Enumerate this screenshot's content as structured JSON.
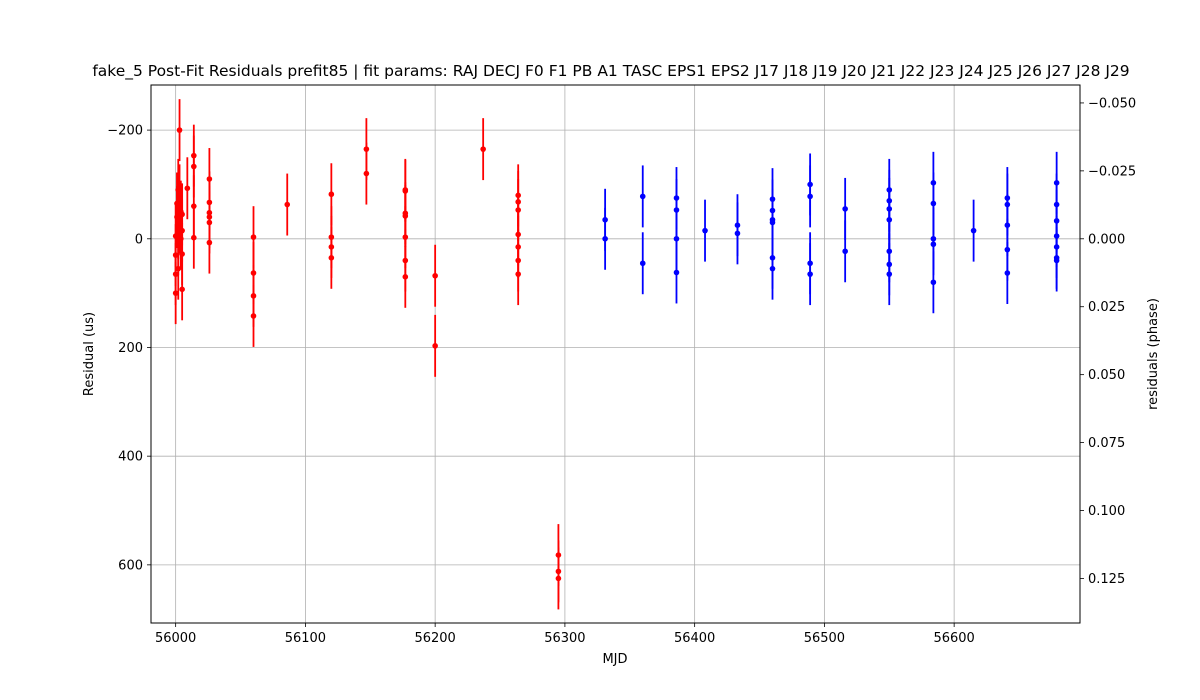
{
  "chart_data": {
    "type": "scatter",
    "title": "fake_5 Post-Fit Residuals prefit85 | fit params: RAJ DECJ F0 F1 PB A1 TASC EPS1 EPS2 J17 J18 J19 J20 J21 J22 J23 J24 J25 J26 J27 J28 J29",
    "xlabel": "MJD",
    "ylabel": "Residual (us)",
    "ylabel_right": "residuals (phase)",
    "xlim": [
      55981,
      56697
    ],
    "ylim": [
      707,
      -283
    ],
    "ylim_right": [
      0.1414,
      -0.0566
    ],
    "x_ticks": [
      56000,
      56100,
      56200,
      56300,
      56400,
      56500,
      56600
    ],
    "x_tick_labels": [
      "56000",
      "56100",
      "56200",
      "56300",
      "56400",
      "56500",
      "56600"
    ],
    "y_ticks": [
      -200,
      0,
      200,
      400,
      600
    ],
    "y_tick_labels": [
      "−200",
      "0",
      "200",
      "400",
      "600"
    ],
    "y2_ticks": [
      -0.05,
      -0.025,
      0.0,
      0.025,
      0.05,
      0.075,
      0.1,
      0.125
    ],
    "y2_tick_labels": [
      "−0.050",
      "−0.025",
      "0.000",
      "0.025",
      "0.050",
      "0.075",
      "0.100",
      "0.125"
    ],
    "grid": true,
    "series": [
      {
        "color": "#ff0000",
        "points": [
          {
            "x": 56000,
            "y": 100,
            "err": 57
          },
          {
            "x": 56000,
            "y": 65,
            "err": 57
          },
          {
            "x": 56000,
            "y": 30,
            "err": 57
          },
          {
            "x": 56000,
            "y": -5,
            "err": 57
          },
          {
            "x": 56001,
            "y": -40,
            "err": 57
          },
          {
            "x": 56001,
            "y": -65,
            "err": 57
          },
          {
            "x": 56002,
            "y": 55,
            "err": 57
          },
          {
            "x": 56002,
            "y": 10,
            "err": 57
          },
          {
            "x": 56002,
            "y": -20,
            "err": 57
          },
          {
            "x": 56002,
            "y": -50,
            "err": 57
          },
          {
            "x": 56002,
            "y": -90,
            "err": 57
          },
          {
            "x": 56003,
            "y": -200,
            "err": 57
          },
          {
            "x": 56003,
            "y": -80,
            "err": 57
          },
          {
            "x": 56003,
            "y": -30,
            "err": 57
          },
          {
            "x": 56004,
            "y": 0,
            "err": 57
          },
          {
            "x": 56004,
            "y": -50,
            "err": 57
          },
          {
            "x": 56005,
            "y": -15,
            "err": 57
          },
          {
            "x": 56005,
            "y": 28,
            "err": 57
          },
          {
            "x": 56005,
            "y": -45,
            "err": 57
          },
          {
            "x": 56005,
            "y": 93,
            "err": 57
          },
          {
            "x": 56009,
            "y": -93,
            "err": 57
          },
          {
            "x": 56014,
            "y": -153,
            "err": 57
          },
          {
            "x": 56014,
            "y": -133,
            "err": 57
          },
          {
            "x": 56014,
            "y": -60,
            "err": 57
          },
          {
            "x": 56014,
            "y": -2,
            "err": 57
          },
          {
            "x": 56026,
            "y": -110,
            "err": 57
          },
          {
            "x": 56026,
            "y": -67,
            "err": 57
          },
          {
            "x": 56026,
            "y": -48,
            "err": 57
          },
          {
            "x": 56026,
            "y": -40,
            "err": 57
          },
          {
            "x": 56026,
            "y": -30,
            "err": 57
          },
          {
            "x": 56026,
            "y": 7,
            "err": 57
          },
          {
            "x": 56060,
            "y": -3,
            "err": 57
          },
          {
            "x": 56060,
            "y": 63,
            "err": 57
          },
          {
            "x": 56060,
            "y": 105,
            "err": 57
          },
          {
            "x": 56060,
            "y": 142,
            "err": 57
          },
          {
            "x": 56086,
            "y": -63,
            "err": 57
          },
          {
            "x": 56120,
            "y": -82,
            "err": 57
          },
          {
            "x": 56120,
            "y": -3,
            "err": 57
          },
          {
            "x": 56120,
            "y": 15,
            "err": 57
          },
          {
            "x": 56120,
            "y": 35,
            "err": 57
          },
          {
            "x": 56147,
            "y": -165,
            "err": 57
          },
          {
            "x": 56147,
            "y": -120,
            "err": 57
          },
          {
            "x": 56177,
            "y": -90,
            "err": 57
          },
          {
            "x": 56177,
            "y": -88,
            "err": 57
          },
          {
            "x": 56177,
            "y": -47,
            "err": 57
          },
          {
            "x": 56177,
            "y": -42,
            "err": 57
          },
          {
            "x": 56177,
            "y": -3,
            "err": 57
          },
          {
            "x": 56177,
            "y": 40,
            "err": 57
          },
          {
            "x": 56177,
            "y": 70,
            "err": 57
          },
          {
            "x": 56200,
            "y": 68,
            "err": 57
          },
          {
            "x": 56200,
            "y": 197,
            "err": 57
          },
          {
            "x": 56237,
            "y": -165,
            "err": 57
          },
          {
            "x": 56264,
            "y": -80,
            "err": 57
          },
          {
            "x": 56264,
            "y": -68,
            "err": 57
          },
          {
            "x": 56264,
            "y": -53,
            "err": 57
          },
          {
            "x": 56264,
            "y": -8,
            "err": 57
          },
          {
            "x": 56264,
            "y": 15,
            "err": 57
          },
          {
            "x": 56264,
            "y": 40,
            "err": 57
          },
          {
            "x": 56264,
            "y": 65,
            "err": 57
          },
          {
            "x": 56295,
            "y": 582,
            "err": 57
          },
          {
            "x": 56295,
            "y": 612,
            "err": 57
          },
          {
            "x": 56295,
            "y": 625,
            "err": 57
          }
        ]
      },
      {
        "color": "#0000ff",
        "points": [
          {
            "x": 56331,
            "y": -35,
            "err": 57
          },
          {
            "x": 56331,
            "y": 0,
            "err": 57
          },
          {
            "x": 56360,
            "y": -78,
            "err": 57
          },
          {
            "x": 56360,
            "y": 45,
            "err": 57
          },
          {
            "x": 56386,
            "y": -75,
            "err": 57
          },
          {
            "x": 56386,
            "y": -53,
            "err": 57
          },
          {
            "x": 56386,
            "y": 0,
            "err": 57
          },
          {
            "x": 56386,
            "y": 62,
            "err": 57
          },
          {
            "x": 56408,
            "y": -15,
            "err": 57
          },
          {
            "x": 56433,
            "y": -25,
            "err": 57
          },
          {
            "x": 56433,
            "y": -10,
            "err": 57
          },
          {
            "x": 56460,
            "y": -73,
            "err": 57
          },
          {
            "x": 56460,
            "y": -52,
            "err": 57
          },
          {
            "x": 56460,
            "y": -35,
            "err": 57
          },
          {
            "x": 56460,
            "y": -30,
            "err": 57
          },
          {
            "x": 56460,
            "y": 35,
            "err": 57
          },
          {
            "x": 56460,
            "y": 55,
            "err": 57
          },
          {
            "x": 56489,
            "y": -100,
            "err": 57
          },
          {
            "x": 56489,
            "y": -78,
            "err": 57
          },
          {
            "x": 56489,
            "y": 45,
            "err": 57
          },
          {
            "x": 56489,
            "y": 65,
            "err": 57
          },
          {
            "x": 56516,
            "y": -55,
            "err": 57
          },
          {
            "x": 56516,
            "y": 23,
            "err": 57
          },
          {
            "x": 56550,
            "y": -90,
            "err": 57
          },
          {
            "x": 56550,
            "y": -70,
            "err": 57
          },
          {
            "x": 56550,
            "y": -55,
            "err": 57
          },
          {
            "x": 56550,
            "y": -35,
            "err": 57
          },
          {
            "x": 56550,
            "y": 23,
            "err": 57
          },
          {
            "x": 56550,
            "y": 47,
            "err": 57
          },
          {
            "x": 56550,
            "y": 65,
            "err": 57
          },
          {
            "x": 56584,
            "y": -103,
            "err": 57
          },
          {
            "x": 56584,
            "y": -65,
            "err": 57
          },
          {
            "x": 56584,
            "y": 0,
            "err": 57
          },
          {
            "x": 56584,
            "y": 10,
            "err": 57
          },
          {
            "x": 56584,
            "y": 80,
            "err": 57
          },
          {
            "x": 56615,
            "y": -15,
            "err": 57
          },
          {
            "x": 56641,
            "y": -75,
            "err": 57
          },
          {
            "x": 56641,
            "y": -63,
            "err": 57
          },
          {
            "x": 56641,
            "y": -25,
            "err": 57
          },
          {
            "x": 56641,
            "y": 20,
            "err": 57
          },
          {
            "x": 56641,
            "y": 63,
            "err": 57
          },
          {
            "x": 56679,
            "y": -103,
            "err": 57
          },
          {
            "x": 56679,
            "y": -63,
            "err": 57
          },
          {
            "x": 56679,
            "y": -33,
            "err": 57
          },
          {
            "x": 56679,
            "y": -5,
            "err": 57
          },
          {
            "x": 56679,
            "y": 15,
            "err": 57
          },
          {
            "x": 56679,
            "y": 35,
            "err": 57
          },
          {
            "x": 56679,
            "y": 40,
            "err": 57
          }
        ]
      }
    ]
  }
}
